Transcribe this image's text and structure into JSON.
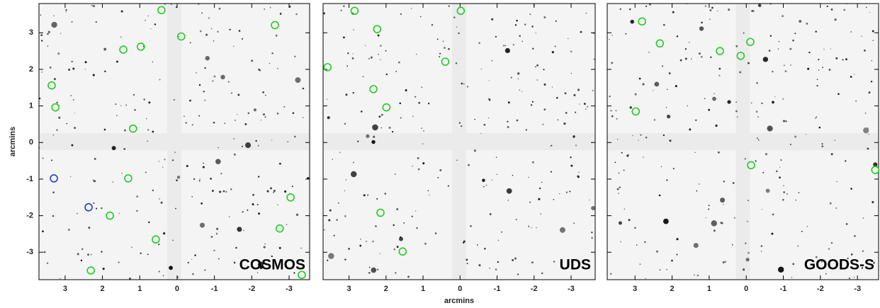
{
  "chart_data": [
    {
      "type": "scatter",
      "title": "COSMOS",
      "ylabel": "arcmins",
      "xlim": [
        3.7,
        -3.55
      ],
      "ylim": [
        -3.75,
        3.8
      ],
      "xticks": [
        3,
        2,
        1,
        0,
        -1,
        -2,
        -3
      ],
      "yticks": [
        -3,
        -2,
        -1,
        0,
        1,
        2,
        3
      ],
      "ytick_labels": true,
      "series": [
        {
          "color": "#22cc22",
          "x": [
            0.42,
            -0.11,
            -2.62,
            1.44,
            0.97,
            3.36,
            3.26,
            1.18,
            1.31,
            -3.04,
            1.8,
            -2.75,
            0.57,
            2.31,
            -3.34
          ],
          "y": [
            3.62,
            2.9,
            3.21,
            2.54,
            2.62,
            1.56,
            0.96,
            0.38,
            -0.98,
            -1.5,
            -2.0,
            -2.35,
            -2.65,
            -3.5,
            -3.62
          ]
        },
        {
          "color": "#1f3fbf",
          "x": [
            3.3,
            2.37
          ],
          "y": [
            -0.98,
            -1.77
          ]
        }
      ]
    },
    {
      "type": "scatter",
      "title": "UDS",
      "xlabel": "arcmins",
      "xlim": [
        3.7,
        -3.65
      ],
      "ylim": [
        -3.75,
        3.8
      ],
      "xticks": [
        3,
        2,
        1,
        0,
        -1,
        -2,
        -3
      ],
      "yticks": [
        -3,
        -2,
        -1,
        0,
        1,
        2,
        3
      ],
      "ytick_labels": false,
      "series": [
        {
          "color": "#22cc22",
          "x": [
            2.85,
            2.24,
            -0.02,
            0.4,
            3.58,
            2.34,
            1.99,
            2.15,
            1.55
          ],
          "y": [
            3.6,
            3.1,
            3.6,
            2.21,
            2.06,
            1.46,
            0.96,
            -1.92,
            -2.98
          ]
        }
      ]
    },
    {
      "type": "scatter",
      "title": "GOODS-S",
      "xlim": [
        3.75,
        -3.57
      ],
      "ylim": [
        -3.75,
        3.8
      ],
      "xticks": [
        3,
        2,
        1,
        0,
        -1,
        -2,
        -3
      ],
      "yticks": [
        -3,
        -2,
        -1,
        0,
        1,
        2,
        3
      ],
      "ytick_labels": false,
      "series": [
        {
          "color": "#22cc22",
          "x": [
            2.81,
            2.33,
            0.71,
            -0.11,
            0.15,
            2.98,
            -0.13,
            -3.48
          ],
          "y": [
            3.31,
            2.71,
            2.5,
            2.75,
            2.37,
            0.85,
            -0.62,
            -0.75
          ]
        }
      ]
    }
  ]
}
